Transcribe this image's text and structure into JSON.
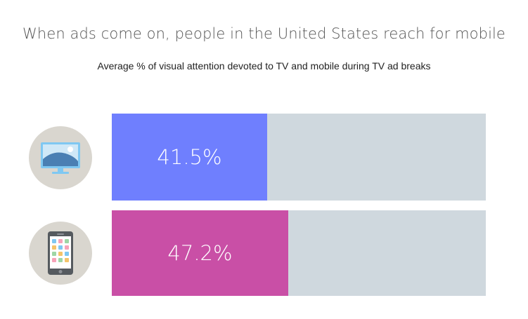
{
  "chart_data": {
    "type": "bar",
    "orientation": "horizontal",
    "title": "When ads come on, people in the United States reach for mobile",
    "subtitle": "Average % of visual attention devoted to TV and mobile during TV ad breaks",
    "categories": [
      "TV",
      "Mobile"
    ],
    "icons": [
      "tv-icon",
      "smartphone-icon"
    ],
    "values": [
      41.5,
      47.2
    ],
    "labels": [
      "41.5%",
      "47.2%"
    ],
    "xlim": [
      0,
      100
    ],
    "unit": "%",
    "colors": [
      "#6f7ffe",
      "#c94fa6"
    ],
    "track_color": "#cfd8de"
  }
}
